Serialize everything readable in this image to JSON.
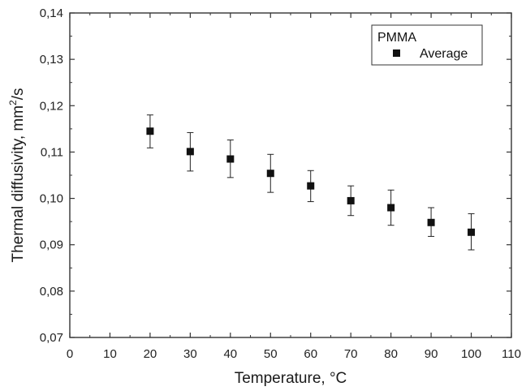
{
  "chart_data": {
    "type": "scatter",
    "x_label_text": "Temperature, °C",
    "y_label_parts": {
      "main": "Thermal diffusivity, mm",
      "sup": "2",
      "tail": "/s"
    },
    "legend_title": "PMMA",
    "series": [
      {
        "name": "Average",
        "x": [
          20,
          30,
          40,
          50,
          60,
          70,
          80,
          90,
          100
        ],
        "y": [
          0.1145,
          0.1101,
          0.1085,
          0.1054,
          0.1027,
          0.0995,
          0.098,
          0.0948,
          0.0927
        ],
        "err_low": [
          0.1109,
          0.1059,
          0.1045,
          0.1013,
          0.0993,
          0.0963,
          0.0942,
          0.0918,
          0.0889
        ],
        "err_high": [
          0.118,
          0.1142,
          0.1126,
          0.1095,
          0.106,
          0.1027,
          0.1018,
          0.098,
          0.0967
        ]
      }
    ],
    "xlim": [
      0,
      110
    ],
    "ylim": [
      0.07,
      0.14
    ],
    "x_ticks": [
      0,
      10,
      20,
      30,
      40,
      50,
      60,
      70,
      80,
      90,
      100,
      110
    ],
    "x_tick_labels": [
      "0",
      "10",
      "20",
      "30",
      "40",
      "50",
      "60",
      "70",
      "80",
      "90",
      "100",
      "110"
    ],
    "y_ticks": [
      0.07,
      0.08,
      0.09,
      0.1,
      0.11,
      0.12,
      0.13,
      0.14
    ],
    "y_tick_labels": [
      "0,07",
      "0,08",
      "0,09",
      "0,10",
      "0,11",
      "0,12",
      "0,13",
      "0,14"
    ],
    "grid": false,
    "legend_position": "top-right",
    "marker": "square",
    "colors": {
      "marker": "#111111",
      "axis": "#333333",
      "errorbar": "#222222"
    }
  }
}
